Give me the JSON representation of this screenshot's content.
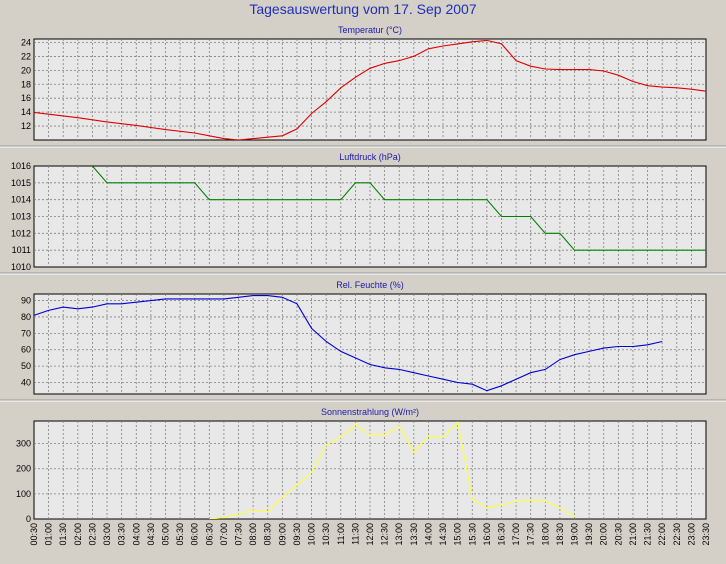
{
  "page": {
    "title": "Tagesauswertung vom 17. Sep 2007"
  },
  "x_labels": [
    "00:30",
    "01:00",
    "01:30",
    "02:00",
    "02:30",
    "03:00",
    "03:30",
    "04:00",
    "04:30",
    "05:00",
    "05:30",
    "06:00",
    "06:30",
    "07:00",
    "07:30",
    "08:00",
    "08:30",
    "09:00",
    "09:30",
    "10:00",
    "10:30",
    "11:00",
    "11:30",
    "12:00",
    "12:30",
    "13:00",
    "13:30",
    "14:00",
    "14:30",
    "15:00",
    "15:30",
    "16:00",
    "16:30",
    "17:00",
    "17:30",
    "18:00",
    "18:30",
    "19:00",
    "19:30",
    "20:00",
    "20:30",
    "21:00",
    "21:30",
    "22:00",
    "22:30",
    "23:00",
    "23:30"
  ],
  "chart_data": [
    {
      "type": "line",
      "title": "Temperatur (°C)",
      "ylim": [
        10,
        24.5
      ],
      "yticks": [
        12,
        14,
        16,
        18,
        20,
        22,
        24
      ],
      "grid": true,
      "color": "#e00000",
      "x_hours": [
        0,
        1,
        2,
        3,
        4,
        5,
        6,
        6.5,
        7,
        7.5,
        8,
        8.5,
        9,
        9.5,
        10,
        10.5,
        11,
        11.5,
        12,
        12.5,
        13,
        13.5,
        14,
        14.5,
        15,
        15.5,
        16,
        16.5,
        17,
        17.5,
        18,
        18.5,
        19,
        19.5,
        20,
        20.5,
        21,
        21.5,
        22,
        22.5,
        23,
        23.5,
        24
      ],
      "values": [
        14.2,
        13.7,
        13.2,
        12.6,
        12.1,
        11.5,
        11.0,
        10.6,
        10.2,
        10.0,
        10.2,
        10.4,
        10.6,
        11.6,
        13.8,
        15.5,
        17.5,
        19.0,
        20.3,
        21.0,
        21.4,
        22.0,
        23.1,
        23.5,
        23.8,
        24.1,
        24.3,
        23.8,
        21.4,
        20.6,
        20.2,
        20.1,
        20.1,
        20.1,
        19.9,
        19.3,
        18.4,
        17.8,
        17.6,
        17.5,
        17.3,
        17.0,
        16.7
      ]
    },
    {
      "type": "line",
      "title": "Luftdruck (hPa)",
      "ylim": [
        1010,
        1016
      ],
      "yticks": [
        1010,
        1011,
        1012,
        1013,
        1014,
        1015,
        1016
      ],
      "grid": true,
      "color": "#008000",
      "x_hours": [
        2.5,
        3,
        6,
        6.5,
        11,
        11.5,
        12,
        12.5,
        16,
        16.5,
        17.5,
        18,
        18.5,
        19,
        23.5,
        24
      ],
      "values": [
        1016,
        1015,
        1015,
        1014,
        1014,
        1015,
        1015,
        1014,
        1014,
        1013,
        1013,
        1012,
        1012,
        1011,
        1011,
        1010
      ]
    },
    {
      "type": "line",
      "title": "Rel. Feuchte (%)",
      "ylim": [
        33,
        94
      ],
      "yticks": [
        40,
        50,
        60,
        70,
        80,
        90
      ],
      "grid": true,
      "color": "#0000d0",
      "x_hours": [
        0,
        0.5,
        1,
        1.5,
        2,
        2.5,
        3,
        3.5,
        4,
        4.5,
        5,
        5.5,
        6,
        6.5,
        7,
        7.5,
        8,
        8.5,
        9,
        9.5,
        10,
        10.5,
        11,
        11.5,
        12,
        12.5,
        13,
        13.5,
        14,
        14.5,
        15,
        15.5,
        16,
        16.5,
        17,
        17.5,
        18,
        18.5,
        19,
        19.5,
        20,
        20.5,
        21,
        21.5,
        22
      ],
      "values": [
        80,
        81,
        84,
        86,
        85,
        86,
        88,
        88,
        89,
        90,
        91,
        91,
        91,
        91,
        91,
        92,
        93,
        93,
        92,
        88,
        73,
        65,
        59,
        55,
        51,
        49,
        48,
        46,
        44,
        42,
        40,
        39,
        35,
        38,
        42,
        46,
        48,
        54,
        57,
        59,
        61,
        62,
        62,
        63,
        65
      ]
    },
    {
      "type": "line",
      "title": "Sonnenstrahlung (W/m²)",
      "ylim": [
        0,
        390
      ],
      "yticks": [
        0,
        100,
        200,
        300
      ],
      "grid": true,
      "color": "#ffff40",
      "x_hours": [
        6.5,
        7,
        7.5,
        8,
        8.5,
        9,
        9.5,
        10,
        10.5,
        11,
        11.5,
        12,
        12.5,
        13,
        13.5,
        14,
        14.5,
        15,
        15.5,
        16,
        16.5,
        17,
        17.5,
        18,
        18.5,
        19
      ],
      "values": [
        0,
        5,
        20,
        35,
        30,
        85,
        135,
        185,
        295,
        325,
        375,
        335,
        335,
        370,
        265,
        330,
        325,
        385,
        80,
        45,
        55,
        70,
        75,
        70,
        45,
        10
      ]
    }
  ]
}
